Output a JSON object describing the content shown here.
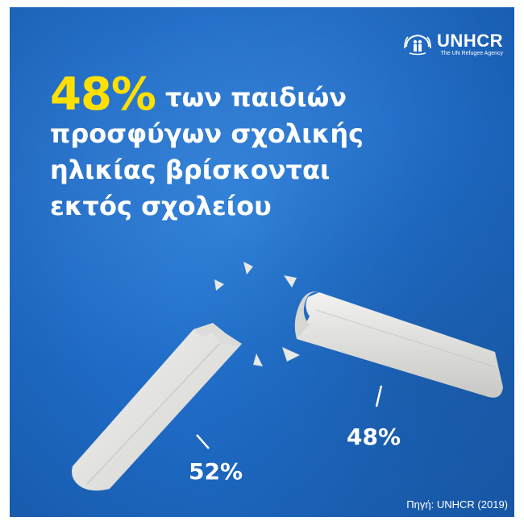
{
  "logo": {
    "name": "UNHCR",
    "tagline": "The UN Refugee Agency",
    "icon": "unhcr-emblem-icon"
  },
  "headline": {
    "percent": "48%",
    "line1_rest": "των παιδιών",
    "line2": "προσφύγων σχολικής",
    "line3": "ηλικίας βρίσκονται",
    "line4": "εκτός σχολείου"
  },
  "pieces": {
    "left_label": "52%",
    "left_value": 52,
    "right_label": "48%",
    "right_value": 48
  },
  "source": "Πηγή: UNHCR (2019)",
  "colors": {
    "background": "#1f6cc8",
    "accent": "#ffe000",
    "text": "#ffffff",
    "chalk": "#e8e8e6"
  }
}
